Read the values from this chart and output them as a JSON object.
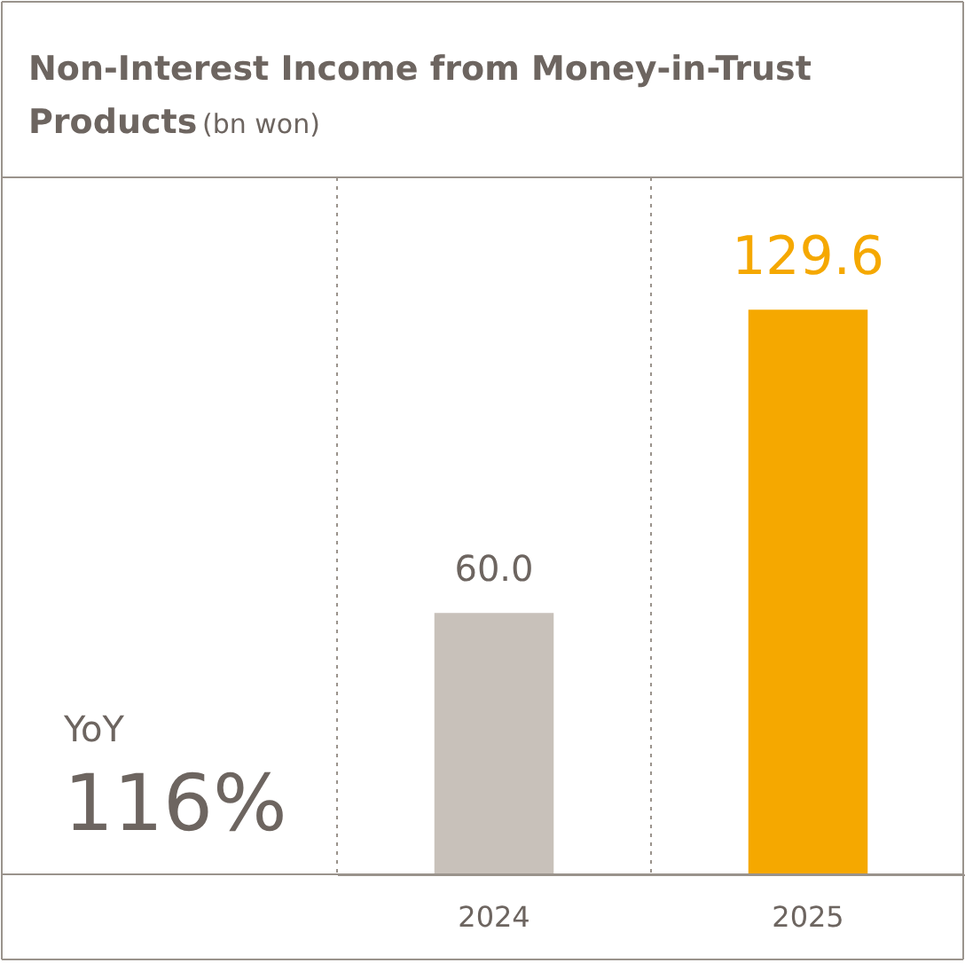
{
  "chart_data": {
    "type": "bar",
    "title": "Non-Interest Income from Money-in-Trust Products",
    "subtitle": "(bn won)",
    "categories": [
      "2024",
      "2025"
    ],
    "values": [
      60.0,
      129.6
    ],
    "colors": [
      "#c8c1ba",
      "#f5a800"
    ],
    "ylim": [
      0,
      160
    ],
    "tick_labels": "x",
    "value_labels": [
      "60.0",
      "129.6"
    ],
    "grid": "x",
    "annotations": [
      "YoY",
      "116%"
    ]
  }
}
